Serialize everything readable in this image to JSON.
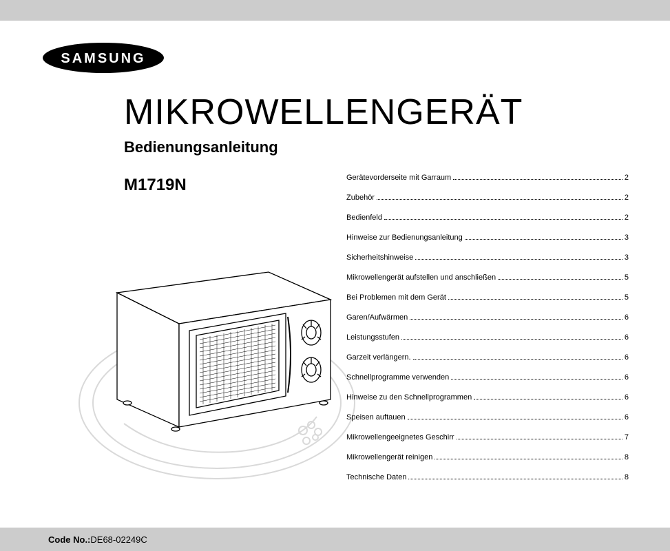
{
  "brand": "SAMSUNG",
  "title": "MIKROWELLENGERÄT",
  "subtitle": "Bedienungsanleitung",
  "model": "M1719N",
  "toc": [
    {
      "label": "Gerätevorderseite mit Garraum",
      "page": "2"
    },
    {
      "label": "Zubehör",
      "page": "2"
    },
    {
      "label": "Bedienfeld",
      "page": "2"
    },
    {
      "label": "Hinweise zur Bedienungsanleitung",
      "page": "3"
    },
    {
      "label": "Sicherheitshinweise",
      "page": "3"
    },
    {
      "label": "Mikrowellengerät aufstellen und anschließen",
      "page": "5"
    },
    {
      "label": "Bei Problemen mit dem Gerät",
      "page": "5"
    },
    {
      "label": "Garen/Aufwärmen",
      "page": "6"
    },
    {
      "label": "Leistungsstufen",
      "page": "6"
    },
    {
      "label": "Garzeit verlängern.",
      "page": "6"
    },
    {
      "label": "Schnellprogramme verwenden",
      "page": "6"
    },
    {
      "label": "Hinweise zu den Schnellprogrammen",
      "page": "6"
    },
    {
      "label": "Speisen auftauen",
      "page": "6"
    },
    {
      "label": "Mikrowellengeeignetes Geschirr",
      "page": "7"
    },
    {
      "label": "Mikrowellengerät reinigen",
      "page": "8"
    },
    {
      "label": "Technische Daten",
      "page": "8"
    }
  ],
  "code_label": "Code No.: ",
  "code_value": "DE68-02249C",
  "colors": {
    "bar": "#cccccc",
    "text": "#000000",
    "background": "#ffffff",
    "watermark": "#d9d9d9"
  }
}
